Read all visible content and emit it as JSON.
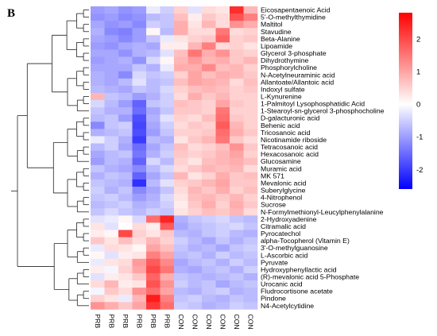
{
  "panel_label": "B",
  "chart_data": {
    "type": "heatmap",
    "columns": [
      "PRB",
      "PRB",
      "PRB",
      "PRB",
      "PRB",
      "PRB",
      "CON",
      "CON",
      "CON",
      "CON",
      "CON",
      "CON"
    ],
    "rows": [
      "Eicosapentaenoic Acid",
      "5'-O-methylthymidine",
      "Maltitol",
      "Stavudine",
      "Beta-Alanine",
      "Lipoamide",
      "Glycerol 3-phosphate",
      "Dihydrothymine",
      "Phosphorylcholine",
      "N-Acetylneuraminic acid",
      "Allantoate/Allantoic acid",
      "Indoxyl sulfate",
      "L-Kynurenine",
      "1-Palmitoyl Lysophosphatidic Acid",
      "1-Stearoyl-sn-glycerol 3-phosphocholine",
      "D-galacturonic acid",
      "Behenic acid",
      "Tricosanoic acid",
      "Nicotinamide riboside",
      "Tetracosanoic acid",
      "Hexacosanoic acid",
      "Glucosamine",
      "Muramic acid",
      "MK 571",
      "Mevalonic acid",
      "Suberylglycine",
      "4-Nitrophenol",
      "Sucrose",
      "N-Formylmethionyl-Leucylphenylalanine",
      "2-Hydroxyadenine",
      "Citramalic acid",
      "Pyrocatechol",
      "alpha-Tocopherol (Vitamin E)",
      "3'-O-methylguanosine",
      "L-Ascorbic acid",
      "Pyruvate",
      "Hydroxyphenyllactic acid",
      "(R)-mevalonic acid 5-Phosphate",
      "Urocanic acid",
      "Fludrocortisone acetate",
      "Pindone",
      "N4-Acetylcytidine"
    ],
    "values": [
      [
        -1.0,
        -0.9,
        -1.1,
        -1.0,
        -0.2,
        -0.5,
        0.5,
        -0.3,
        0.4,
        0.3,
        2.3,
        0.8
      ],
      [
        -1.1,
        -1.0,
        -1.2,
        -1.1,
        -0.7,
        -0.6,
        0.7,
        0.2,
        0.6,
        0.4,
        1.9,
        1.4
      ],
      [
        -0.9,
        -1.1,
        -1.0,
        -1.2,
        -0.5,
        -0.6,
        0.9,
        0.3,
        0.8,
        0.4,
        1.2,
        0.9
      ],
      [
        -0.8,
        -1.2,
        -1.3,
        -1.0,
        0.1,
        -0.7,
        0.9,
        0.4,
        0.4,
        1.5,
        0.4,
        0.5
      ],
      [
        -0.9,
        -1.0,
        -1.2,
        -1.0,
        -0.6,
        -0.2,
        0.3,
        0.5,
        0.6,
        1.7,
        0.5,
        0.6
      ],
      [
        -1.0,
        -1.1,
        -0.9,
        -0.8,
        -0.9,
        0.2,
        0.2,
        0.8,
        1.4,
        0.4,
        0.5,
        0.3
      ],
      [
        -0.9,
        -0.9,
        -1.1,
        -0.8,
        -0.7,
        -0.3,
        0.7,
        1.5,
        0.9,
        1.2,
        0.6,
        0.5
      ],
      [
        -1.0,
        -0.9,
        -0.8,
        -1.1,
        -0.4,
        0.1,
        0.8,
        1.1,
        0.8,
        0.9,
        0.6,
        0.8
      ],
      [
        -0.9,
        -0.9,
        -0.9,
        -0.6,
        -0.8,
        -0.2,
        0.9,
        0.9,
        1.3,
        0.7,
        0.8,
        0.5
      ],
      [
        -0.8,
        -0.9,
        -1.2,
        -0.4,
        -0.6,
        -0.5,
        0.5,
        1.0,
        0.7,
        0.9,
        0.8,
        0.6
      ],
      [
        -0.8,
        -0.9,
        -0.7,
        -0.3,
        -0.7,
        -0.6,
        0.7,
        1.0,
        0.9,
        0.8,
        0.4,
        0.7
      ],
      [
        -0.7,
        -0.8,
        -0.9,
        -0.6,
        -0.7,
        -0.4,
        0.5,
        0.7,
        0.8,
        0.7,
        0.5,
        0.6
      ],
      [
        0.8,
        -0.6,
        -0.7,
        -1.0,
        -0.8,
        -0.5,
        0.4,
        0.9,
        0.6,
        0.8,
        0.5,
        0.5
      ],
      [
        -0.4,
        -0.7,
        -1.0,
        -1.6,
        -0.6,
        -0.5,
        0.7,
        0.6,
        0.5,
        1.0,
        0.6,
        0.5
      ],
      [
        -0.6,
        -0.8,
        -0.8,
        -1.5,
        -0.9,
        -0.6,
        0.6,
        0.6,
        0.5,
        1.5,
        0.5,
        0.5
      ],
      [
        -0.7,
        -0.6,
        -1.0,
        -1.8,
        -0.8,
        -0.3,
        0.5,
        0.4,
        0.7,
        1.6,
        0.6,
        0.5
      ],
      [
        -1.2,
        -0.6,
        -0.5,
        -1.9,
        -0.9,
        -0.5,
        0.4,
        0.6,
        0.5,
        1.8,
        0.8,
        0.5
      ],
      [
        -0.8,
        -0.7,
        -0.6,
        -1.8,
        -1.0,
        -0.6,
        0.5,
        0.5,
        0.6,
        1.6,
        0.9,
        0.6
      ],
      [
        -0.2,
        -0.5,
        -0.8,
        -2.0,
        -0.7,
        -0.8,
        0.3,
        0.6,
        0.8,
        1.5,
        0.6,
        0.4
      ],
      [
        -0.7,
        -0.5,
        -0.9,
        -1.5,
        -0.9,
        -0.6,
        0.7,
        0.4,
        0.5,
        0.7,
        1.2,
        0.6
      ],
      [
        -0.9,
        -0.7,
        -0.6,
        -1.4,
        -0.8,
        -0.5,
        0.6,
        0.5,
        0.6,
        0.8,
        1.0,
        0.5
      ],
      [
        -1.0,
        -0.7,
        -0.8,
        -1.6,
        -0.4,
        -0.7,
        0.5,
        0.3,
        0.7,
        0.8,
        0.9,
        0.7
      ],
      [
        -0.6,
        -0.8,
        -0.9,
        -1.2,
        -0.7,
        -0.4,
        0.4,
        0.6,
        0.8,
        0.7,
        0.8,
        0.4
      ],
      [
        -0.8,
        -0.6,
        -0.7,
        -1.6,
        -0.9,
        -0.6,
        0.8,
        0.3,
        0.5,
        0.9,
        0.6,
        0.7
      ],
      [
        -0.6,
        -0.7,
        -0.8,
        -2.1,
        -0.7,
        -0.3,
        0.5,
        0.6,
        0.8,
        1.0,
        0.6,
        0.6
      ],
      [
        -0.5,
        -0.8,
        -0.6,
        -1.2,
        -0.9,
        -0.6,
        0.4,
        0.8,
        0.6,
        0.9,
        0.5,
        0.7
      ],
      [
        -0.6,
        -0.5,
        -0.7,
        -1.0,
        -0.8,
        -0.4,
        0.3,
        0.7,
        0.8,
        0.6,
        0.8,
        0.5
      ],
      [
        -0.7,
        -0.6,
        -0.5,
        -0.8,
        -0.7,
        -0.5,
        0.2,
        0.6,
        0.9,
        0.5,
        0.9,
        0.6
      ],
      [
        -0.6,
        -0.4,
        -0.6,
        -0.7,
        -0.5,
        -0.6,
        0.3,
        0.5,
        0.7,
        0.6,
        0.8,
        0.4
      ],
      [
        -0.3,
        -0.2,
        0.1,
        -0.4,
        1.6,
        2.4,
        -0.8,
        -0.6,
        -0.5,
        -0.4,
        -0.6,
        -0.7
      ],
      [
        0.3,
        -0.3,
        0.0,
        0.4,
        0.2,
        1.8,
        -0.9,
        -0.7,
        -0.6,
        -0.5,
        -0.4,
        -0.6
      ],
      [
        0.2,
        0.1,
        2.0,
        0.5,
        0.3,
        0.6,
        -0.7,
        -0.8,
        -0.6,
        -0.5,
        -0.7,
        -0.8
      ],
      [
        0.6,
        0.3,
        0.7,
        0.4,
        0.8,
        0.5,
        -0.5,
        -0.7,
        -0.9,
        -0.6,
        -0.8,
        -0.6
      ],
      [
        -0.2,
        0.4,
        0.3,
        0.1,
        1.0,
        0.7,
        -0.6,
        -0.8,
        -0.7,
        -0.9,
        -0.6,
        -0.5
      ],
      [
        0.1,
        -0.3,
        0.2,
        0.3,
        1.4,
        1.0,
        -0.7,
        -0.6,
        -0.8,
        -0.5,
        -0.7,
        -0.6
      ],
      [
        -0.2,
        0.3,
        0.4,
        1.1,
        1.8,
        1.3,
        -0.9,
        -0.7,
        -0.6,
        -0.8,
        -0.5,
        -0.7
      ],
      [
        0.2,
        -0.1,
        0.5,
        1.0,
        2.0,
        1.5,
        -0.8,
        -0.9,
        -0.7,
        -0.6,
        -0.8,
        -0.5
      ],
      [
        -0.3,
        0.2,
        0.3,
        0.6,
        1.7,
        0.9,
        -0.6,
        -0.7,
        -0.8,
        -0.7,
        -0.6,
        -0.8
      ],
      [
        0.4,
        0.8,
        0.2,
        0.3,
        1.9,
        1.2,
        -0.5,
        -0.7,
        -0.6,
        -0.9,
        -0.7,
        -0.6
      ],
      [
        -0.1,
        0.6,
        0.4,
        1.2,
        1.6,
        1.0,
        -0.7,
        -0.8,
        -0.6,
        -0.5,
        -0.8,
        -0.7
      ],
      [
        0.5,
        0.3,
        -0.2,
        0.8,
        2.5,
        1.4,
        -0.6,
        -0.5,
        -0.7,
        -0.8,
        -0.6,
        -0.7
      ],
      [
        1.2,
        0.9,
        0.6,
        1.0,
        2.2,
        1.6,
        -0.5,
        -0.6,
        -0.8,
        -0.7,
        -0.5,
        -0.6
      ]
    ],
    "colorbar": {
      "ticks": [
        2,
        1,
        0,
        -1,
        -2
      ],
      "range": [
        -2.6,
        2.8
      ],
      "colors": {
        "low": "#0000ff",
        "mid": "#ffffff",
        "high": "#ff0000"
      }
    },
    "dendrogram": {
      "side": "left",
      "split_after_row": 28
    }
  }
}
